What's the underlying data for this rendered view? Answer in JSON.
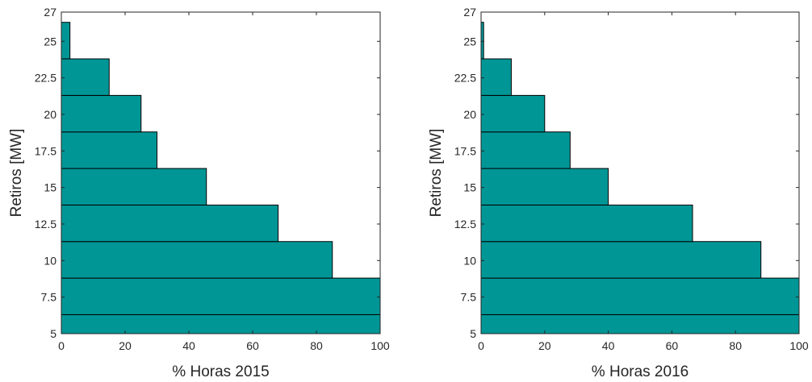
{
  "chart_data": [
    {
      "type": "bar",
      "orientation": "horizontal",
      "xlabel": "% Horas 2015",
      "ylabel": "Retiros [MW]",
      "xlim": [
        0,
        100
      ],
      "ylim": [
        5,
        27
      ],
      "xticks": [
        0,
        20,
        40,
        60,
        80,
        100
      ],
      "yticks": [
        5,
        7.5,
        10,
        12.5,
        15,
        17.5,
        20,
        22.5,
        25,
        27
      ],
      "ytick_labels": [
        "5",
        "7.5",
        "10",
        "12.5",
        "15",
        "17.5",
        "20",
        "22.5",
        "25",
        "27"
      ],
      "bin_edges": [
        5,
        6.3,
        8.8,
        11.3,
        13.8,
        16.3,
        18.8,
        21.3,
        23.8,
        26.3
      ],
      "values": [
        100,
        100,
        85,
        68,
        45.5,
        30,
        25,
        15,
        2.7
      ],
      "bar_color": "#009696",
      "edge_color": "#000000",
      "grid": false
    },
    {
      "type": "bar",
      "orientation": "horizontal",
      "xlabel": "% Horas 2016",
      "ylabel": "Retiros [MW]",
      "xlim": [
        0,
        100
      ],
      "ylim": [
        5,
        27
      ],
      "xticks": [
        0,
        20,
        40,
        60,
        80,
        100
      ],
      "yticks": [
        5,
        7.5,
        10,
        12.5,
        15,
        17.5,
        20,
        22.5,
        25,
        27
      ],
      "ytick_labels": [
        "5",
        "7.5",
        "10",
        "12.5",
        "15",
        "17.5",
        "20",
        "22.5",
        "25",
        "27"
      ],
      "bin_edges": [
        5,
        6.3,
        8.8,
        11.3,
        13.8,
        16.3,
        18.8,
        21.3,
        23.8,
        26.3
      ],
      "values": [
        100,
        100,
        88,
        66.5,
        40,
        28,
        20,
        9.5,
        0.8
      ],
      "bar_color": "#009696",
      "edge_color": "#000000",
      "grid": false
    }
  ]
}
